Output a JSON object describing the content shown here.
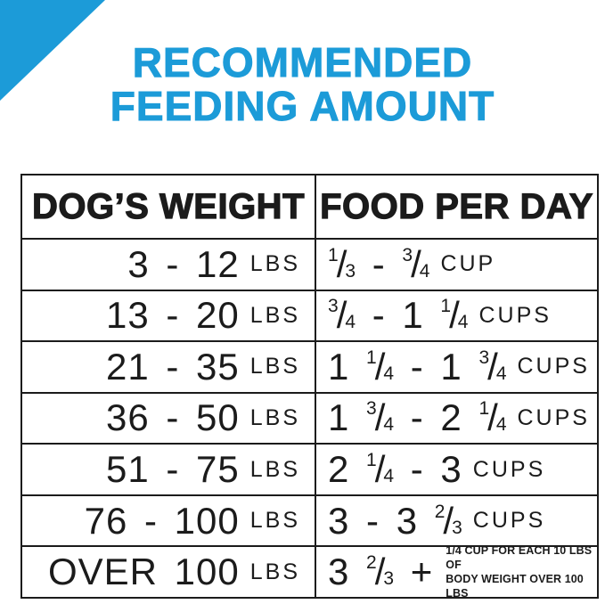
{
  "colors": {
    "accent_blue": "#1c9bd8",
    "ink_black": "#1b1b1b",
    "background": "#ffffff"
  },
  "decor": {
    "corner_triangle": "blue-triangle-top-left"
  },
  "title": {
    "line1": "RECOMMENDED",
    "line2": "FEEDING AMOUNT"
  },
  "table": {
    "headers": [
      "DOG’S WEIGHT",
      "FOOD PER DAY"
    ],
    "rows": [
      {
        "weight": "3 - 12",
        "weight_unit": "LBS",
        "food": "1/3 - 3/4",
        "food_unit": "CUP"
      },
      {
        "weight": "13 - 20",
        "weight_unit": "LBS",
        "food": "3/4 - 1 1/4",
        "food_unit": "CUPS"
      },
      {
        "weight": "21 - 35",
        "weight_unit": "LBS",
        "food": "1 1/4 - 1 3/4",
        "food_unit": "CUPS"
      },
      {
        "weight": "36 - 50",
        "weight_unit": "LBS",
        "food": "1 3/4 - 2 1/4",
        "food_unit": "CUPS"
      },
      {
        "weight": "51 - 75",
        "weight_unit": "LBS",
        "food": "2 1/4 - 3",
        "food_unit": "CUPS"
      },
      {
        "weight": "76 - 100",
        "weight_unit": "LBS",
        "food": "3 - 3 2/3",
        "food_unit": "CUPS"
      },
      {
        "weight": "OVER 100",
        "weight_unit": "LBS",
        "food": "3 2/3 +",
        "food_unit": "",
        "note_line1": "1/4 CUP FOR EACH 10 LBS OF",
        "note_line2": "BODY WEIGHT OVER 100 LBS"
      }
    ]
  },
  "chart_data": {
    "type": "table",
    "title": "RECOMMENDED FEEDING AMOUNT",
    "columns": [
      "DOG’S WEIGHT",
      "FOOD PER DAY"
    ],
    "rows": [
      [
        "3 - 12 LBS",
        "1/3 - 3/4 CUP"
      ],
      [
        "13 - 20 LBS",
        "3/4 - 1 1/4 CUPS"
      ],
      [
        "21 - 35 LBS",
        "1 1/4 - 1 3/4 CUPS"
      ],
      [
        "36 - 50 LBS",
        "1 3/4 - 2 1/4 CUPS"
      ],
      [
        "51 - 75 LBS",
        "2 1/4 - 3 CUPS"
      ],
      [
        "76 - 100 LBS",
        "3 - 3 2/3 CUPS"
      ],
      [
        "OVER 100 LBS",
        "3 2/3 + 1/4 CUP FOR EACH 10 LBS OF BODY WEIGHT OVER 100 LBS"
      ]
    ]
  }
}
